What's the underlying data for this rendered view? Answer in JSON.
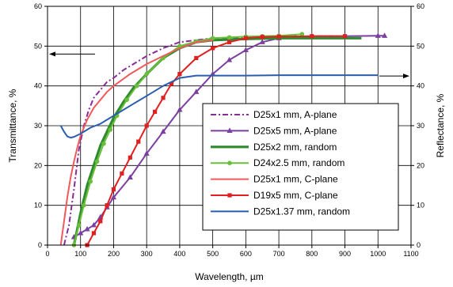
{
  "chart_data": {
    "type": "line",
    "xlabel": "Wavelength, µm",
    "ylabel_left": "Transmittance, %",
    "ylabel_right": "Reflectance, %",
    "xlim": [
      0,
      1100
    ],
    "ylim": [
      0,
      60
    ],
    "x_ticks": [
      "0",
      "100",
      "200",
      "300",
      "400",
      "500",
      "600",
      "700",
      "800",
      "900",
      "1000",
      "1100"
    ],
    "y_ticks": [
      "0",
      "10",
      "20",
      "30",
      "40",
      "50",
      "60"
    ],
    "grid": true,
    "legend_position": "center-right",
    "axis_arrows": [
      {
        "side": "left",
        "y": 48
      },
      {
        "side": "right",
        "y": 42.5
      }
    ],
    "series": [
      {
        "name": "D25x1 mm, A-plane",
        "color": "#8a2b9a",
        "dash": "dashdot",
        "marker": "none",
        "x": [
          50,
          65,
          80,
          95,
          110,
          125,
          140,
          160,
          180,
          200,
          230,
          260,
          300,
          350,
          400,
          450,
          500,
          600,
          700,
          800,
          900
        ],
        "y": [
          0,
          5,
          14,
          24,
          30,
          34,
          37,
          39,
          41,
          42,
          44,
          45.5,
          47.5,
          49.5,
          51,
          51.5,
          52,
          52,
          52.3,
          52.5,
          52.5
        ]
      },
      {
        "name": "D25x5 mm, A-plane",
        "color": "#7b3fa0",
        "dash": "solid",
        "marker": "triangle",
        "x": [
          80,
          100,
          120,
          140,
          160,
          180,
          200,
          250,
          300,
          350,
          400,
          450,
          500,
          550,
          600,
          650,
          700,
          750,
          800,
          900,
          1000,
          1020
        ],
        "y": [
          2,
          3,
          4,
          5,
          7,
          9.5,
          12,
          17,
          23,
          28.5,
          34,
          38.5,
          43,
          46.5,
          49,
          51,
          52,
          52.3,
          52.5,
          52.5,
          52.6,
          52.6
        ]
      },
      {
        "name": "D25x2 mm, random",
        "color": "#2e8b2e",
        "dash": "solid",
        "marker": "none",
        "x": [
          80,
          90,
          100,
          120,
          140,
          160,
          180,
          200,
          230,
          260,
          300,
          350,
          400,
          450,
          500,
          600,
          700,
          800,
          900,
          950
        ],
        "y": [
          0,
          4,
          8,
          15,
          20,
          25,
          28.5,
          32,
          36,
          39.5,
          43,
          47,
          49.5,
          51,
          51.5,
          51.8,
          52,
          52,
          52,
          52
        ]
      },
      {
        "name": "D24x2.5 mm, random",
        "color": "#6abf3a",
        "dash": "solid",
        "marker": "circle",
        "x": [
          80,
          95,
          110,
          130,
          150,
          170,
          190,
          210,
          240,
          270,
          300,
          350,
          400,
          450,
          500,
          550,
          600,
          650,
          700,
          770
        ],
        "y": [
          0,
          5,
          10,
          16,
          21,
          25.5,
          29,
          32.5,
          36.5,
          40,
          43,
          47,
          50,
          51.2,
          52,
          52.2,
          52.4,
          52.5,
          52.6,
          53
        ]
      },
      {
        "name": "D25x1 mm, C-plane",
        "color": "#f05a5a",
        "dash": "solid",
        "marker": "none",
        "x": [
          40,
          50,
          60,
          70,
          80,
          90,
          100,
          120,
          140,
          160,
          180,
          200,
          250,
          300,
          350,
          400,
          450,
          500
        ],
        "y": [
          0,
          6,
          12,
          17,
          21,
          24.5,
          27.5,
          31.5,
          34.5,
          36.5,
          38.5,
          40,
          43,
          45.5,
          47.5,
          49.5,
          51,
          51.5
        ]
      },
      {
        "name": "D19x5 mm, C-plane",
        "color": "#e02020",
        "dash": "solid",
        "marker": "square",
        "x": [
          120,
          140,
          160,
          180,
          200,
          225,
          250,
          275,
          300,
          325,
          350,
          375,
          400,
          450,
          500,
          550,
          600,
          650,
          700,
          800,
          900
        ],
        "y": [
          0,
          3,
          6,
          10,
          14,
          18,
          22,
          26,
          30,
          33.5,
          37,
          40.5,
          43,
          47,
          49.5,
          51,
          52,
          52.3,
          52.4,
          52.5,
          52.5
        ]
      },
      {
        "name": "D25x1.37 mm, random",
        "color": "#2a5db0",
        "dash": "solid",
        "marker": "none",
        "x": [
          40,
          50,
          60,
          70,
          80,
          100,
          130,
          160,
          200,
          250,
          300,
          350,
          400,
          450,
          500,
          600,
          700,
          800,
          900,
          1000
        ],
        "y": [
          30,
          28.5,
          27.3,
          27,
          27.2,
          28,
          29.5,
          30.5,
          32.5,
          35,
          37.5,
          40,
          42,
          42.6,
          42.6,
          42.6,
          42.7,
          42.7,
          42.7,
          42.7
        ]
      }
    ]
  }
}
